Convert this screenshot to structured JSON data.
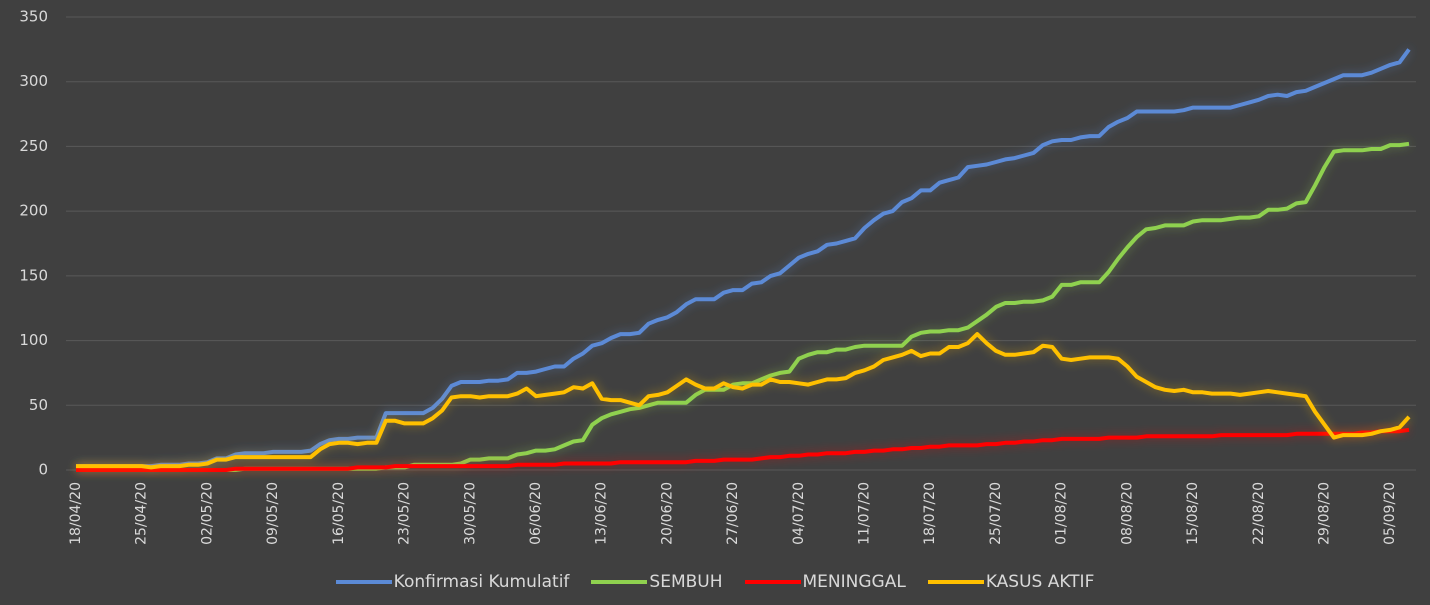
{
  "chart_data": {
    "type": "line",
    "categories": [
      "18/04/20",
      null,
      null,
      null,
      null,
      null,
      null,
      "25/04/20",
      null,
      null,
      null,
      null,
      null,
      null,
      "02/05/20",
      null,
      null,
      null,
      null,
      null,
      null,
      "09/05/20",
      null,
      null,
      null,
      null,
      null,
      null,
      "16/05/20",
      null,
      null,
      null,
      null,
      null,
      null,
      "23/05/20",
      null,
      null,
      null,
      null,
      null,
      null,
      "30/05/20",
      null,
      null,
      null,
      null,
      null,
      null,
      "06/06/20",
      null,
      null,
      null,
      null,
      null,
      null,
      "13/06/20",
      null,
      null,
      null,
      null,
      null,
      null,
      "20/06/20",
      null,
      null,
      null,
      null,
      null,
      null,
      "27/06/20",
      null,
      null,
      null,
      null,
      null,
      null,
      "04/07/20",
      null,
      null,
      null,
      null,
      null,
      null,
      "11/07/20",
      null,
      null,
      null,
      null,
      null,
      null,
      "18/07/20",
      null,
      null,
      null,
      null,
      null,
      null,
      "25/07/20",
      null,
      null,
      null,
      null,
      null,
      null,
      "01/08/20",
      null,
      null,
      null,
      null,
      null,
      null,
      "08/08/20",
      null,
      null,
      null,
      null,
      null,
      null,
      "15/08/20",
      null,
      null,
      null,
      null,
      null,
      null,
      "22/08/20",
      null,
      null,
      null,
      null,
      null,
      null,
      "29/08/20",
      null,
      null,
      null,
      null,
      null,
      null,
      "05/09/20",
      null,
      null
    ],
    "series": [
      {
        "name": "Konfirmasi Kumulatif",
        "color": "#5b8ad6",
        "values": [
          3,
          3,
          3,
          3,
          3,
          3,
          3,
          3,
          3,
          4,
          4,
          4,
          5,
          5,
          6,
          9,
          9,
          12,
          13,
          13,
          13,
          14,
          14,
          14,
          14,
          15,
          20,
          23,
          24,
          24,
          25,
          25,
          25,
          44,
          44,
          44,
          44,
          44,
          48,
          55,
          65,
          68,
          68,
          68,
          69,
          69,
          70,
          75,
          75,
          76,
          78,
          80,
          80,
          86,
          90,
          96,
          98,
          102,
          105,
          105,
          106,
          113,
          116,
          118,
          122,
          128,
          132,
          132,
          132,
          137,
          139,
          139,
          144,
          145,
          150,
          152,
          158,
          164,
          167,
          169,
          174,
          175,
          177,
          179,
          187,
          193,
          198,
          200,
          207,
          210,
          216,
          216,
          222,
          224,
          226,
          234,
          235,
          236,
          238,
          240,
          241,
          243,
          245,
          251,
          254,
          255,
          255,
          257,
          258,
          258,
          265,
          269,
          272,
          277,
          277,
          277,
          277,
          277,
          278,
          280,
          280,
          280,
          280,
          280,
          282,
          284,
          286,
          289,
          290,
          289,
          292,
          293,
          296,
          299,
          302,
          305,
          305,
          305,
          307,
          310,
          313,
          315,
          325
        ]
      },
      {
        "name": "SEMBUH",
        "color": "#8fd14f",
        "values": [
          0,
          0,
          0,
          0,
          0,
          0,
          0,
          0,
          0,
          0,
          0,
          0,
          0,
          0,
          0,
          0,
          0,
          0,
          1,
          1,
          1,
          1,
          1,
          1,
          1,
          1,
          1,
          1,
          1,
          1,
          1,
          1,
          1,
          2,
          2,
          2,
          4,
          4,
          4,
          4,
          4,
          5,
          8,
          8,
          9,
          9,
          9,
          12,
          13,
          15,
          15,
          16,
          19,
          22,
          23,
          35,
          40,
          43,
          45,
          47,
          48,
          50,
          52,
          52,
          52,
          52,
          58,
          62,
          62,
          62,
          66,
          67,
          67,
          70,
          73,
          75,
          76,
          86,
          89,
          91,
          91,
          93,
          93,
          95,
          96,
          96,
          96,
          96,
          96,
          103,
          106,
          107,
          107,
          108,
          108,
          110,
          115,
          120,
          126,
          129,
          129,
          130,
          130,
          131,
          134,
          143,
          143,
          145,
          145,
          145,
          153,
          163,
          172,
          180,
          186,
          187,
          189,
          189,
          189,
          192,
          193,
          193,
          193,
          194,
          195,
          195,
          196,
          201,
          201,
          202,
          206,
          207,
          220,
          234,
          246,
          247,
          247,
          247,
          248,
          248,
          251,
          251,
          252
        ]
      },
      {
        "name": "MENINGGAL",
        "color": "#ff0000",
        "values": [
          0,
          0,
          0,
          0,
          0,
          0,
          0,
          0,
          0,
          0,
          0,
          0,
          0,
          0,
          0,
          0,
          0,
          1,
          1,
          1,
          1,
          1,
          1,
          1,
          1,
          1,
          1,
          1,
          1,
          1,
          2,
          2,
          2,
          2,
          3,
          3,
          3,
          3,
          3,
          3,
          3,
          3,
          3,
          3,
          3,
          3,
          3,
          4,
          4,
          4,
          4,
          4,
          5,
          5,
          5,
          5,
          5,
          5,
          6,
          6,
          6,
          6,
          6,
          6,
          6,
          6,
          7,
          7,
          7,
          8,
          8,
          8,
          8,
          9,
          10,
          10,
          11,
          11,
          12,
          12,
          13,
          13,
          13,
          14,
          14,
          15,
          15,
          16,
          16,
          17,
          17,
          18,
          18,
          19,
          19,
          19,
          19,
          20,
          20,
          21,
          21,
          22,
          22,
          23,
          23,
          24,
          24,
          24,
          24,
          24,
          25,
          25,
          25,
          25,
          26,
          26,
          26,
          26,
          26,
          26,
          26,
          26,
          27,
          27,
          27,
          27,
          27,
          27,
          27,
          27,
          28,
          28,
          28,
          28,
          28,
          28,
          28,
          29,
          29,
          30,
          30,
          30,
          31
        ]
      },
      {
        "name": "KASUS AKTIF",
        "color": "#ffc000",
        "values": [
          3,
          3,
          3,
          3,
          3,
          3,
          3,
          3,
          2,
          3,
          3,
          3,
          4,
          4,
          5,
          8,
          8,
          10,
          10,
          10,
          10,
          10,
          10,
          10,
          10,
          10,
          16,
          20,
          21,
          21,
          20,
          21,
          21,
          38,
          38,
          36,
          36,
          36,
          40,
          46,
          56,
          57,
          57,
          56,
          57,
          57,
          57,
          59,
          63,
          57,
          58,
          59,
          60,
          64,
          63,
          67,
          55,
          54,
          54,
          52,
          50,
          57,
          58,
          60,
          65,
          70,
          66,
          63,
          63,
          67,
          64,
          63,
          66,
          66,
          70,
          68,
          68,
          67,
          66,
          68,
          70,
          70,
          71,
          75,
          77,
          80,
          85,
          87,
          89,
          92,
          88,
          90,
          90,
          95,
          95,
          98,
          105,
          98,
          92,
          89,
          89,
          90,
          91,
          96,
          95,
          86,
          85,
          86,
          87,
          87,
          87,
          86,
          80,
          72,
          68,
          64,
          62,
          61,
          62,
          60,
          60,
          59,
          59,
          59,
          58,
          59,
          60,
          61,
          60,
          59,
          58,
          57,
          45,
          35,
          25,
          27,
          27,
          27,
          28,
          30,
          31,
          33,
          41
        ]
      }
    ],
    "ylim": [
      0,
      350
    ],
    "yticks": [
      0,
      50,
      100,
      150,
      200,
      250,
      300,
      350
    ],
    "grid": true,
    "legend": "bottom"
  }
}
